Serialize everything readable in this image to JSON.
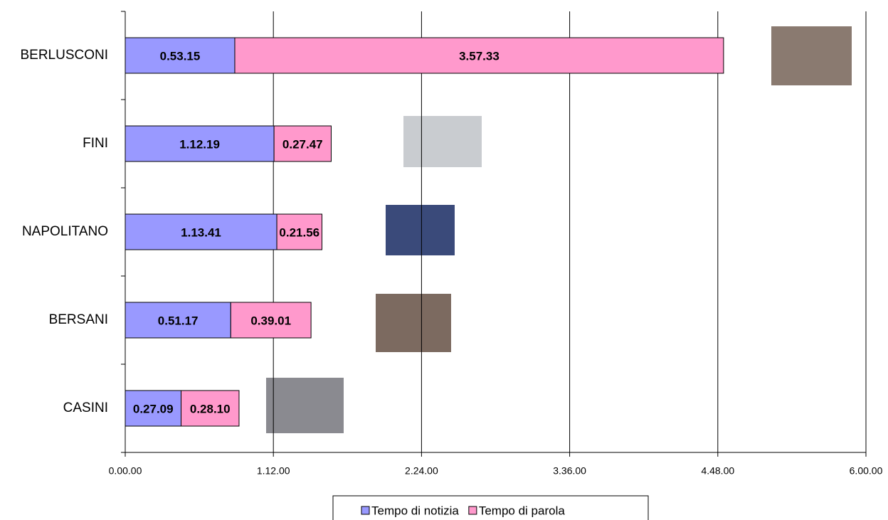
{
  "chart_data": {
    "type": "stacked-bar-horizontal",
    "categories": [
      "BERLUSCONI",
      "FINI",
      "NAPOLITANO",
      "BERSANI",
      "CASINI"
    ],
    "series": [
      {
        "name": "Tempo di notizia",
        "color": "#9999ff",
        "values": [
          3195,
          4339,
          4421,
          3077,
          1629
        ],
        "value_labels": [
          "0.53.15",
          "1.12.19",
          "1.13.41",
          "0.51.17",
          "0.27.09"
        ]
      },
      {
        "name": "Tempo di parola",
        "color": "#ff99cc",
        "values": [
          14253,
          1667,
          1316,
          2341,
          1690
        ],
        "value_labels": [
          "3.57.33",
          "0.27.47",
          "0.21.56",
          "0.39.01",
          "0.28.10"
        ]
      }
    ],
    "xlim": [
      0,
      21600
    ],
    "xticks": [
      {
        "value": 0,
        "label": "0.00.00"
      },
      {
        "value": 4320,
        "label": "1.12.00"
      },
      {
        "value": 8640,
        "label": "2.24.00"
      },
      {
        "value": 12960,
        "label": "3.36.00"
      },
      {
        "value": 17280,
        "label": "4.48.00"
      },
      {
        "value": 21600,
        "label": "6.00.00"
      }
    ],
    "grid": true
  }
}
